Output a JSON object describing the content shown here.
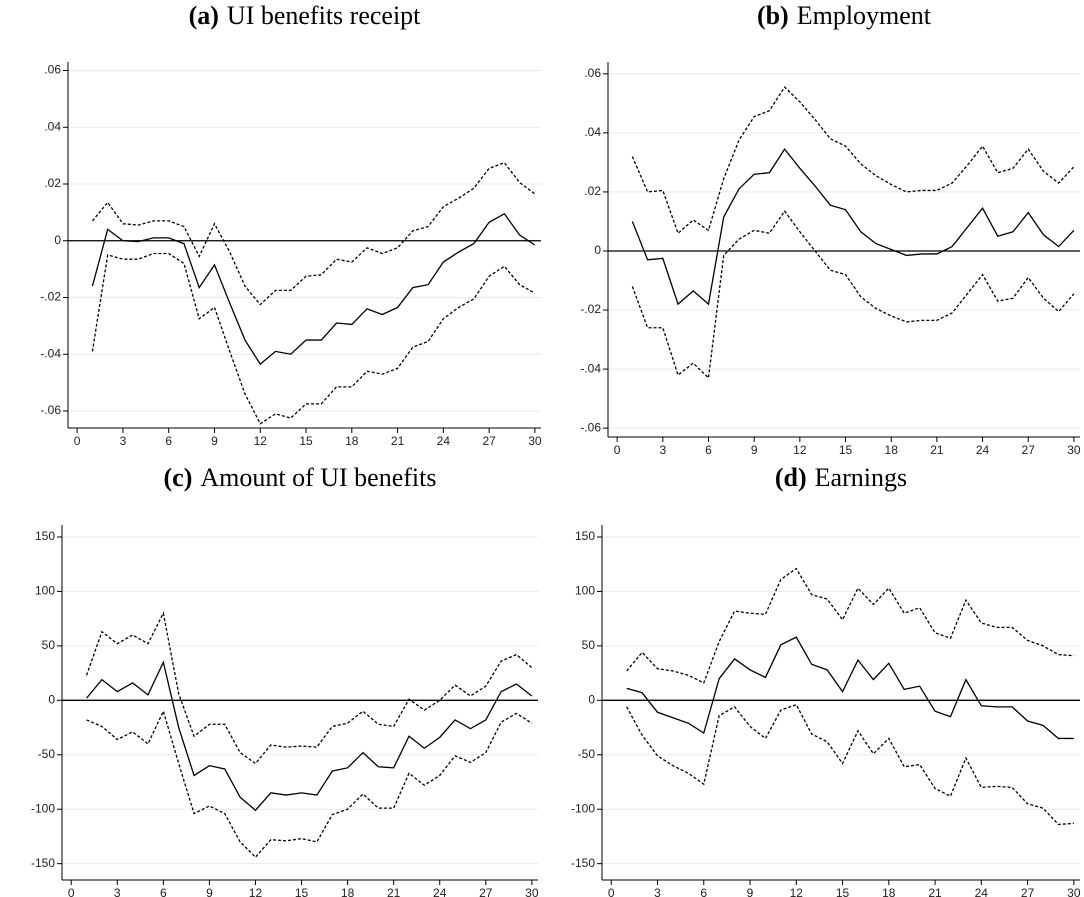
{
  "chart_data": [
    {
      "type": "line",
      "panel": "(a)",
      "title": "UI benefits receipt",
      "x": [
        1,
        2,
        3,
        4,
        5,
        6,
        7,
        8,
        9,
        10,
        11,
        12,
        13,
        14,
        15,
        16,
        17,
        18,
        19,
        20,
        21,
        22,
        23,
        24,
        25,
        26,
        27,
        28,
        29,
        30
      ],
      "series": [
        {
          "color": "#000000",
          "dashed": false,
          "values": [
            -0.016,
            0.004,
            0,
            -0.0003,
            0.001,
            0.001,
            -0.001,
            -0.0165,
            -0.0085,
            -0.022,
            -0.035,
            -0.0435,
            -0.039,
            -0.04,
            -0.035,
            -0.035,
            -0.029,
            -0.0295,
            -0.024,
            -0.026,
            -0.0235,
            -0.0165,
            -0.0155,
            -0.0075,
            -0.004,
            -0.001,
            0.0065,
            0.0095,
            0.002,
            -0.0015
          ]
        },
        {
          "color": "#000000",
          "dashed": true,
          "values": [
            0.007,
            0.0135,
            0.006,
            0.0055,
            0.007,
            0.007,
            0.005,
            -0.0055,
            0.006,
            -0.004,
            -0.016,
            -0.0225,
            -0.0175,
            -0.0175,
            -0.0125,
            -0.012,
            -0.0065,
            -0.0075,
            -0.0025,
            -0.0045,
            -0.0025,
            0.0035,
            0.005,
            0.012,
            0.015,
            0.0185,
            0.0255,
            0.0275,
            0.0205,
            0.0165
          ]
        },
        {
          "color": "#000000",
          "dashed": true,
          "values": [
            -0.039,
            -0.005,
            -0.0065,
            -0.0065,
            -0.0045,
            -0.0045,
            -0.008,
            -0.0275,
            -0.0235,
            -0.039,
            -0.054,
            -0.0645,
            -0.061,
            -0.0625,
            -0.0575,
            -0.0575,
            -0.0515,
            -0.0515,
            -0.046,
            -0.047,
            -0.045,
            -0.0375,
            -0.0355,
            -0.0275,
            -0.0235,
            -0.0205,
            -0.0125,
            -0.009,
            -0.0155,
            -0.0185
          ]
        }
      ],
      "xlim": [
        -0.6,
        30.4
      ],
      "xticks": [
        0,
        3,
        6,
        9,
        12,
        15,
        18,
        21,
        24,
        27,
        30
      ],
      "ylim": [
        -0.066,
        0.063
      ],
      "yticks": [
        {
          "value": -0.06,
          "label": "-.06"
        },
        {
          "value": -0.04,
          "label": "-.04"
        },
        {
          "value": -0.02,
          "label": "-.02"
        },
        0,
        {
          "value": 0.02,
          "label": ".02"
        },
        {
          "value": 0.04,
          "label": ".04"
        },
        {
          "value": 0.06,
          "label": ".06"
        }
      ],
      "hline": 0,
      "grid": true
    },
    {
      "type": "line",
      "panel": "(b)",
      "title": "Employment",
      "x": [
        1,
        2,
        3,
        4,
        5,
        6,
        7,
        8,
        9,
        10,
        11,
        12,
        13,
        14,
        15,
        16,
        17,
        18,
        19,
        20,
        21,
        22,
        23,
        24,
        25,
        26,
        27,
        28,
        29,
        30
      ],
      "series": [
        {
          "color": "#000000",
          "dashed": false,
          "values": [
            0.01,
            -0.003,
            -0.0025,
            -0.018,
            -0.0135,
            -0.018,
            0.0115,
            0.021,
            0.026,
            0.0265,
            0.0345,
            0.028,
            0.022,
            0.0155,
            0.014,
            0.0065,
            0.0025,
            0.0005,
            -0.0015,
            -0.001,
            -0.001,
            0.0015,
            0.008,
            0.0145,
            0.005,
            0.0065,
            0.013,
            0.0055,
            0.0015,
            0.007
          ]
        },
        {
          "color": "#000000",
          "dashed": true,
          "values": [
            0.032,
            0.02,
            0.0205,
            0.006,
            0.0105,
            0.007,
            0.0245,
            0.0375,
            0.0455,
            0.0475,
            0.0555,
            0.0505,
            0.0445,
            0.038,
            0.0355,
            0.0295,
            0.0255,
            0.0225,
            0.02,
            0.0205,
            0.0205,
            0.023,
            0.029,
            0.0355,
            0.0265,
            0.028,
            0.0345,
            0.027,
            0.023,
            0.0285
          ]
        },
        {
          "color": "#000000",
          "dashed": true,
          "values": [
            -0.012,
            -0.026,
            -0.026,
            -0.042,
            -0.038,
            -0.043,
            -0.0015,
            0.004,
            0.007,
            0.006,
            0.0135,
            0.0065,
            0,
            -0.0065,
            -0.008,
            -0.0155,
            -0.0195,
            -0.022,
            -0.024,
            -0.0235,
            -0.0235,
            -0.021,
            -0.0145,
            -0.008,
            -0.017,
            -0.016,
            -0.009,
            -0.016,
            -0.0205,
            -0.0145
          ]
        }
      ],
      "xlim": [
        -0.6,
        30.4
      ],
      "xticks": [
        0,
        3,
        6,
        9,
        12,
        15,
        18,
        21,
        24,
        27,
        30
      ],
      "ylim": [
        -0.063,
        0.064
      ],
      "yticks": [
        {
          "value": -0.06,
          "label": "-.06"
        },
        {
          "value": -0.04,
          "label": "-.04"
        },
        {
          "value": -0.02,
          "label": "-.02"
        },
        0,
        {
          "value": 0.02,
          "label": ".02"
        },
        {
          "value": 0.04,
          "label": ".04"
        },
        {
          "value": 0.06,
          "label": ".06"
        }
      ],
      "hline": 0,
      "grid": true
    },
    {
      "type": "line",
      "panel": "(c)",
      "title": "Amount of UI benefits",
      "x": [
        1,
        2,
        3,
        4,
        5,
        6,
        7,
        8,
        9,
        10,
        11,
        12,
        13,
        14,
        15,
        16,
        17,
        18,
        19,
        20,
        21,
        22,
        23,
        24,
        25,
        26,
        27,
        28,
        29,
        30
      ],
      "series": [
        {
          "color": "#000000",
          "dashed": false,
          "values": [
            2,
            19,
            8,
            16,
            5,
            35,
            -25,
            -69,
            -60,
            -63,
            -89,
            -101,
            -85,
            -87,
            -85,
            -87,
            -65,
            -62,
            -48,
            -61,
            -62,
            -33,
            -44,
            -34,
            -18,
            -26,
            -18,
            8,
            15,
            4
          ]
        },
        {
          "color": "#000000",
          "dashed": true,
          "values": [
            23,
            63,
            52,
            60,
            52,
            80,
            6,
            -33,
            -22,
            -22,
            -48,
            -58,
            -41,
            -43,
            -42,
            -43,
            -24,
            -21,
            -10,
            -22,
            -24,
            1,
            -9,
            0,
            14,
            4,
            13,
            36,
            42,
            30
          ]
        },
        {
          "color": "#000000",
          "dashed": true,
          "values": [
            -18,
            -24,
            -36,
            -29,
            -40,
            -10,
            -58,
            -104,
            -97,
            -104,
            -130,
            -144,
            -128,
            -129,
            -127,
            -130,
            -105,
            -100,
            -86,
            -99,
            -99,
            -67,
            -78,
            -69,
            -51,
            -57,
            -48,
            -20,
            -12,
            -21
          ]
        }
      ],
      "xlim": [
        -0.6,
        30.4
      ],
      "xticks": [
        0,
        3,
        6,
        9,
        12,
        15,
        18,
        21,
        24,
        27,
        30
      ],
      "ylim": [
        -165,
        161
      ],
      "yticks": [
        -150,
        -100,
        -50,
        0,
        50,
        100,
        150
      ],
      "hline": 0,
      "grid": true
    },
    {
      "type": "line",
      "panel": "(d)",
      "title": "Earnings",
      "x": [
        1,
        2,
        3,
        4,
        5,
        6,
        7,
        8,
        9,
        10,
        11,
        12,
        13,
        14,
        15,
        16,
        17,
        18,
        19,
        20,
        21,
        22,
        23,
        24,
        25,
        26,
        27,
        28,
        29,
        30
      ],
      "series": [
        {
          "color": "#000000",
          "dashed": false,
          "values": [
            11,
            7,
            -11,
            -16,
            -21,
            -30,
            20,
            38,
            28,
            21,
            51,
            58,
            33,
            28,
            8,
            37,
            19,
            34,
            10,
            13,
            -10,
            -15,
            19,
            -5,
            -6,
            -6,
            -19,
            -23,
            -35,
            -35
          ]
        },
        {
          "color": "#000000",
          "dashed": true,
          "values": [
            27,
            44,
            29,
            27,
            23,
            16,
            54,
            82,
            80,
            79,
            111,
            121,
            97,
            93,
            74,
            103,
            88,
            103,
            80,
            85,
            62,
            57,
            92,
            71,
            67,
            67,
            55,
            50,
            42,
            41
          ]
        },
        {
          "color": "#000000",
          "dashed": true,
          "values": [
            -6,
            -32,
            -51,
            -60,
            -67,
            -77,
            -14,
            -6,
            -24,
            -35,
            -9,
            -4,
            -31,
            -38,
            -58,
            -28,
            -49,
            -35,
            -61,
            -59,
            -81,
            -88,
            -53,
            -80,
            -79,
            -80,
            -95,
            -99,
            -114,
            -113
          ]
        }
      ],
      "xlim": [
        -0.6,
        30.4
      ],
      "xticks": [
        0,
        3,
        6,
        9,
        12,
        15,
        18,
        21,
        24,
        27,
        30
      ],
      "ylim": [
        -165,
        161
      ],
      "yticks": [
        -150,
        -100,
        -50,
        0,
        50,
        100,
        150
      ],
      "hline": 0,
      "grid": true
    }
  ]
}
